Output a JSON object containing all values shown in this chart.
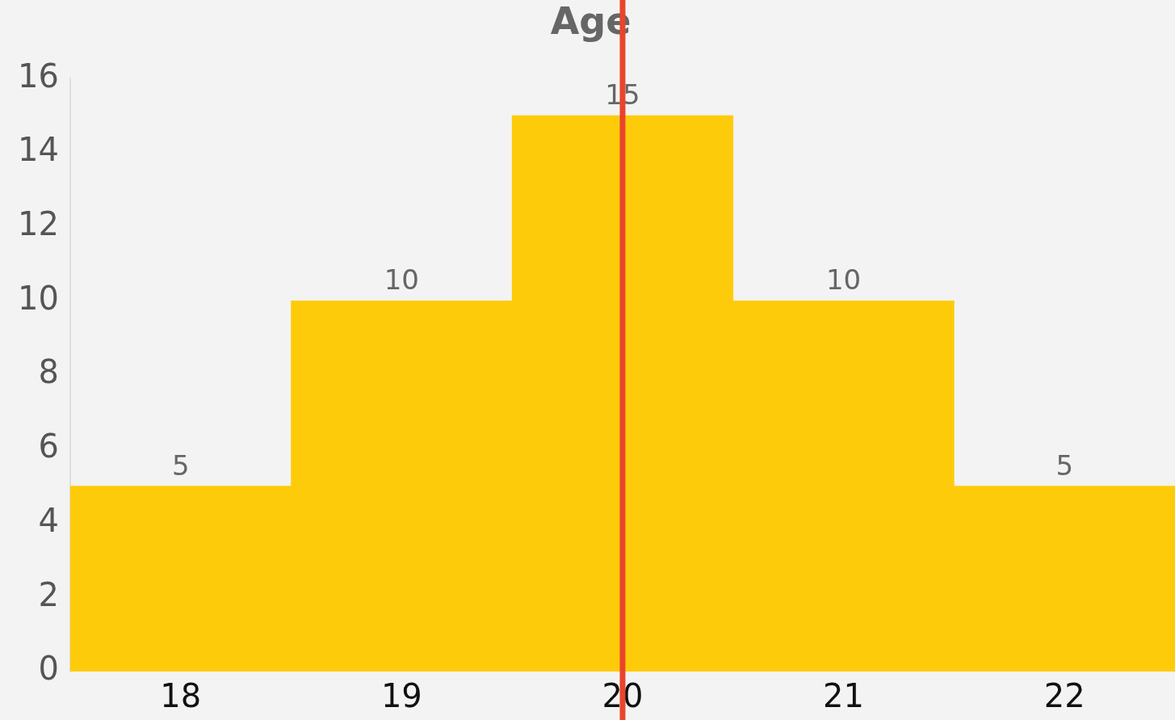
{
  "chart_data": {
    "type": "bar",
    "title": "Age",
    "categories": [
      "18",
      "19",
      "20",
      "21",
      "22"
    ],
    "values": [
      5,
      10,
      15,
      10,
      5
    ],
    "color": "#fecb0a",
    "ylim": [
      0,
      16
    ],
    "yticks": [
      0,
      2,
      4,
      6,
      8,
      10,
      12,
      14,
      16
    ],
    "grid": false,
    "legend": false,
    "data_labels": true,
    "ref_lines": [
      {
        "axis": "x",
        "value": "20",
        "color": "#e8452c"
      }
    ]
  }
}
